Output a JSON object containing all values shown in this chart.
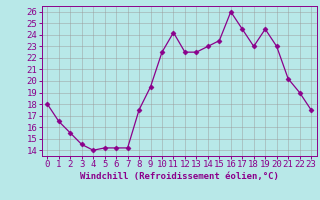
{
  "x": [
    0,
    1,
    2,
    3,
    4,
    5,
    6,
    7,
    8,
    9,
    10,
    11,
    12,
    13,
    14,
    15,
    16,
    17,
    18,
    19,
    20,
    21,
    22,
    23
  ],
  "y": [
    18,
    16.5,
    15.5,
    14.5,
    14,
    14.2,
    14.2,
    14.2,
    17.5,
    19.5,
    22.5,
    24.2,
    22.5,
    22.5,
    23,
    23.5,
    26,
    24.5,
    23,
    24.5,
    23,
    20.2,
    19,
    17.5
  ],
  "line_color": "#8b008b",
  "marker_color": "#8b008b",
  "bg_color": "#b8e8e8",
  "grid_color": "#999999",
  "xlabel": "Windchill (Refroidissement éolien,°C)",
  "xlabel_color": "#8b008b",
  "tick_color": "#8b008b",
  "ylim": [
    13.5,
    26.5
  ],
  "xlim": [
    -0.5,
    23.5
  ],
  "yticks": [
    14,
    15,
    16,
    17,
    18,
    19,
    20,
    21,
    22,
    23,
    24,
    25,
    26
  ],
  "xticks": [
    0,
    1,
    2,
    3,
    4,
    5,
    6,
    7,
    8,
    9,
    10,
    11,
    12,
    13,
    14,
    15,
    16,
    17,
    18,
    19,
    20,
    21,
    22,
    23
  ],
  "font_size": 6.5,
  "marker_size": 2.5,
  "line_width": 0.9
}
